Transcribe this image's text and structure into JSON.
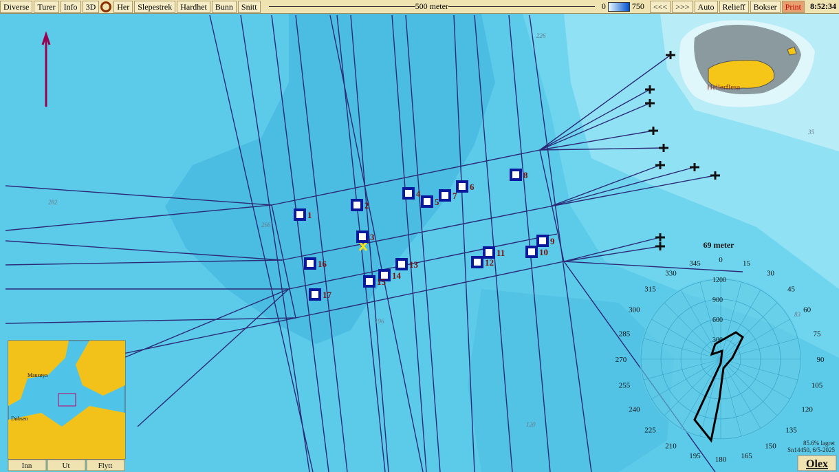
{
  "toolbar": {
    "left": [
      "Diverse",
      "Turer",
      "Info",
      "3D",
      "Her",
      "Slepestrek",
      "Hardhet",
      "Bunn",
      "Snitt"
    ],
    "scale": "500 meter",
    "color_min": "0",
    "color_max": "750",
    "right": [
      "<<<",
      ">>>",
      "Auto",
      "Relieff",
      "Bokser",
      "Print"
    ],
    "time": "8:52:34"
  },
  "map": {
    "place": "Hellerflesa",
    "markers": [
      "1",
      "2",
      "3",
      "4",
      "5",
      "6",
      "7",
      "8",
      "9",
      "10",
      "11",
      "12",
      "13",
      "14",
      "15",
      "16",
      "17"
    ],
    "depth_labels": [
      "282",
      "266",
      "196",
      "120",
      "35",
      "83",
      "226"
    ]
  },
  "rose": {
    "title": "69 meter",
    "angles": [
      0,
      15,
      30,
      45,
      60,
      75,
      90,
      105,
      120,
      135,
      150,
      165,
      180,
      195,
      210,
      225,
      240,
      255,
      270,
      285,
      300,
      315,
      330,
      345
    ],
    "radii": [
      300,
      600,
      900,
      1200
    ]
  },
  "status": {
    "stored": "85.6% lagret",
    "serial": "Sn14450, 6/5-2025",
    "brand": "Olex"
  },
  "inset": {
    "places": [
      "Mausøya",
      "Døbsen"
    ],
    "buttons": [
      "Inn",
      "Ut",
      "Flytt"
    ]
  }
}
